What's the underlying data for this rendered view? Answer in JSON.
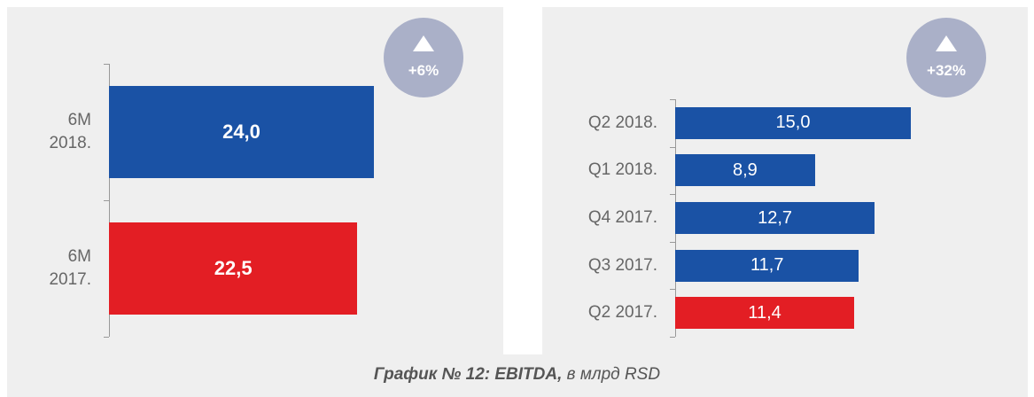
{
  "chart_data": [
    {
      "type": "bar",
      "orientation": "horizontal",
      "categories": [
        "6M 2018.",
        "6M 2017."
      ],
      "values": [
        24.0,
        22.5
      ],
      "value_labels": [
        "24,0",
        "22,5"
      ],
      "colors": [
        "#1a52a5",
        "#e31e24"
      ],
      "badge": "+6%"
    },
    {
      "type": "bar",
      "orientation": "horizontal",
      "categories": [
        "Q2 2018.",
        "Q1 2018.",
        "Q4 2017.",
        "Q3 2017.",
        "Q2 2017."
      ],
      "values": [
        15.0,
        8.9,
        12.7,
        11.7,
        11.4
      ],
      "value_labels": [
        "15,0",
        "8,9",
        "12,7",
        "11,7",
        "11,4"
      ],
      "colors": [
        "#1a52a5",
        "#1a52a5",
        "#1a52a5",
        "#1a52a5",
        "#e31e24"
      ],
      "badge": "+32%"
    }
  ],
  "caption": {
    "bold": "График № 12: EBITDA,",
    "rest": "в млрд RSD"
  }
}
